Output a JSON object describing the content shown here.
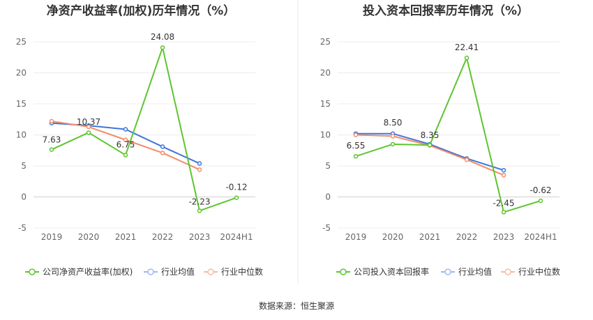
{
  "chart_data": [
    {
      "type": "line",
      "title": "净资产收益率(加权)历年情况（%）",
      "categories": [
        "2019",
        "2020",
        "2021",
        "2022",
        "2023",
        "2024H1"
      ],
      "ylim": [
        -5,
        25
      ],
      "yticks": [
        "-5",
        "0",
        "5",
        "10",
        "15",
        "20",
        "25"
      ],
      "grid": true,
      "legend_position": "bottom-left",
      "series": [
        {
          "name": "公司净资产收益率(加权)",
          "color": "#5ec52e",
          "values": [
            7.63,
            10.37,
            6.75,
            24.08,
            -2.23,
            -0.12
          ],
          "labels": [
            "7.63",
            "10.37",
            "6.75",
            "24.08",
            "-2.23",
            "-0.12"
          ]
        },
        {
          "name": "行业均值",
          "color": "#3e75d9",
          "values": [
            11.9,
            11.5,
            10.9,
            8.1,
            5.4,
            null
          ]
        },
        {
          "name": "行业中位数",
          "color": "#f28c6a",
          "values": [
            12.2,
            11.3,
            9.2,
            7.1,
            4.4,
            null
          ]
        }
      ]
    },
    {
      "type": "line",
      "title": "投入资本回报率历年情况（%）",
      "categories": [
        "2019",
        "2020",
        "2021",
        "2022",
        "2023",
        "2024H1"
      ],
      "ylim": [
        -5,
        25
      ],
      "yticks": [
        "-5",
        "0",
        "5",
        "10",
        "15",
        "20",
        "25"
      ],
      "grid": true,
      "legend_position": "bottom-left",
      "series": [
        {
          "name": "公司投入资本回报率",
          "color": "#5ec52e",
          "values": [
            6.55,
            8.5,
            8.35,
            22.41,
            -2.45,
            -0.62
          ],
          "labels": [
            "6.55",
            "8.50",
            "8.35",
            "22.41",
            "-2.45",
            "-0.62"
          ]
        },
        {
          "name": "行业均值",
          "color": "#3e75d9",
          "values": [
            10.2,
            10.2,
            8.5,
            6.2,
            4.3,
            null
          ]
        },
        {
          "name": "行业中位数",
          "color": "#f28c6a",
          "values": [
            10.0,
            9.8,
            8.3,
            6.0,
            3.5,
            null
          ]
        }
      ]
    }
  ],
  "footer": {
    "source": "数据来源：恒生聚源"
  }
}
